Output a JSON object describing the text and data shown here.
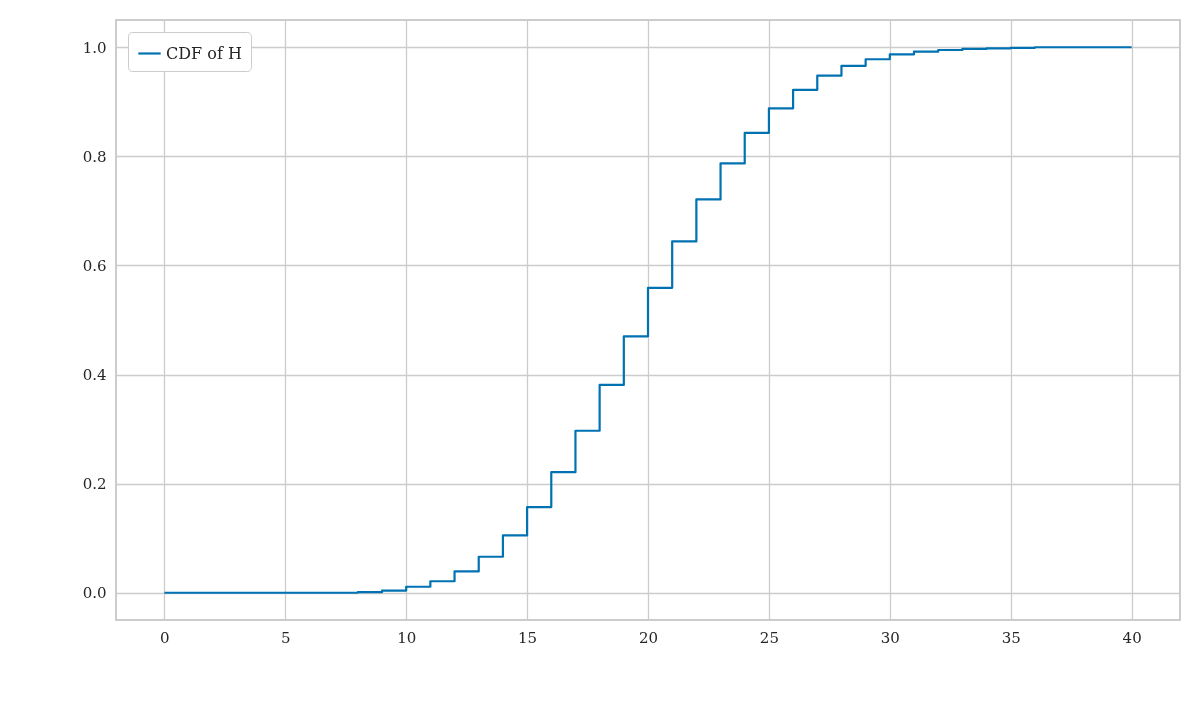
{
  "chart_data": {
    "type": "step",
    "x": [
      0,
      1,
      2,
      3,
      4,
      5,
      6,
      7,
      8,
      9,
      10,
      11,
      12,
      13,
      14,
      15,
      16,
      17,
      18,
      19,
      20,
      21,
      22,
      23,
      24,
      25,
      26,
      27,
      28,
      29,
      30,
      31,
      32,
      33,
      34,
      35,
      36,
      37,
      38,
      39,
      40
    ],
    "series": [
      {
        "name": "CDF of H",
        "color": "#0072b2",
        "values": [
          0,
          0,
          0,
          0,
          0,
          0,
          0,
          0.0,
          0.001,
          0.004,
          0.011,
          0.021,
          0.039,
          0.066,
          0.105,
          0.157,
          0.221,
          0.297,
          0.381,
          0.47,
          0.559,
          0.644,
          0.721,
          0.787,
          0.843,
          0.888,
          0.922,
          0.948,
          0.966,
          0.978,
          0.987,
          0.992,
          0.995,
          0.997,
          0.998,
          0.999,
          1.0,
          1.0,
          1.0,
          1.0,
          1.0
        ]
      }
    ],
    "xlim": [
      -2,
      42
    ],
    "ylim": [
      -0.05,
      1.05
    ],
    "xticks": [
      0,
      5,
      10,
      15,
      20,
      25,
      30,
      35,
      40
    ],
    "yticks": [
      {
        "value": 0,
        "label": "0.0"
      },
      {
        "value": 0.2,
        "label": "0.2"
      },
      {
        "value": 0.4,
        "label": "0.4"
      },
      {
        "value": 0.6,
        "label": "0.6"
      },
      {
        "value": 0.8,
        "label": "0.8"
      },
      {
        "value": 1,
        "label": "1.0"
      }
    ],
    "grid": true,
    "legend": "top left",
    "line_style": "solid",
    "marker": "none"
  }
}
